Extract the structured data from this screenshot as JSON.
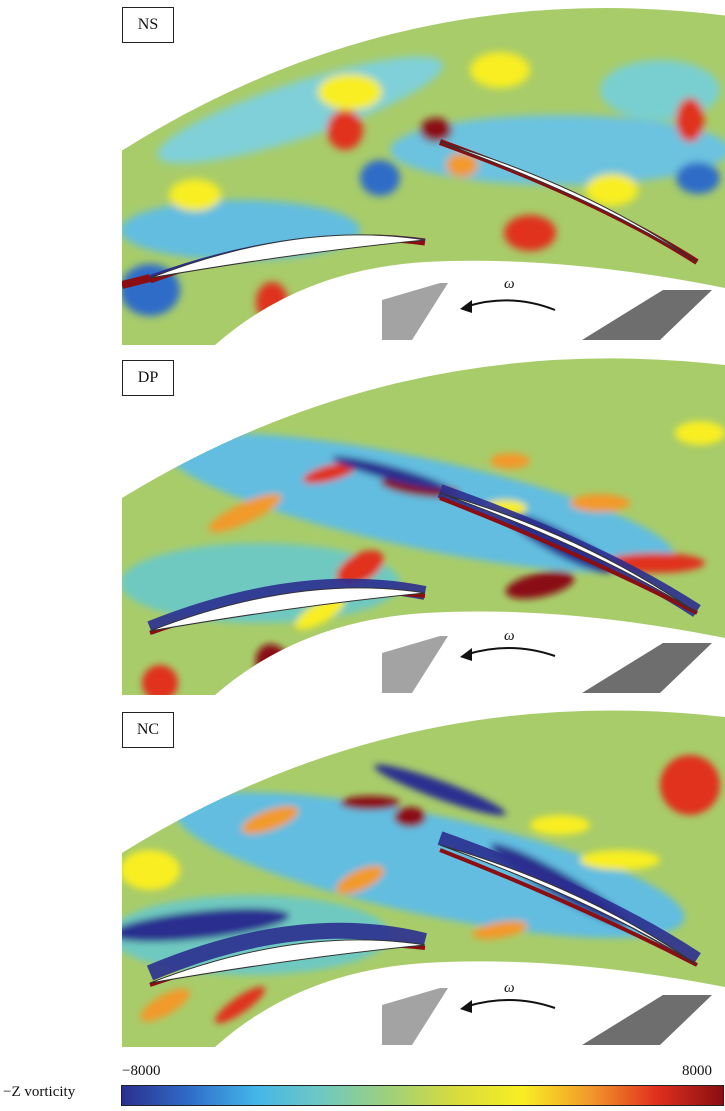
{
  "panels": [
    {
      "label": "NS",
      "omega": "ω"
    },
    {
      "label": "DP",
      "omega": "ω"
    },
    {
      "label": "NC",
      "omega": "ω"
    }
  ],
  "colorbar": {
    "title": "−Z vorticity",
    "min_label": "−8000",
    "max_label": "8000",
    "colors": [
      "#2b2f8f",
      "#2f6cc8",
      "#43b6e8",
      "#6fc9c0",
      "#9fd07a",
      "#d8dc3c",
      "#f8ee24",
      "#f29a2a",
      "#e0301e",
      "#8a0e12"
    ]
  },
  "colors": {
    "background_field": "#a8cc6a",
    "blade_fill": "#ffffff",
    "rotor_light": "#a3a3a3",
    "rotor_dark": "#6e6e6e"
  }
}
